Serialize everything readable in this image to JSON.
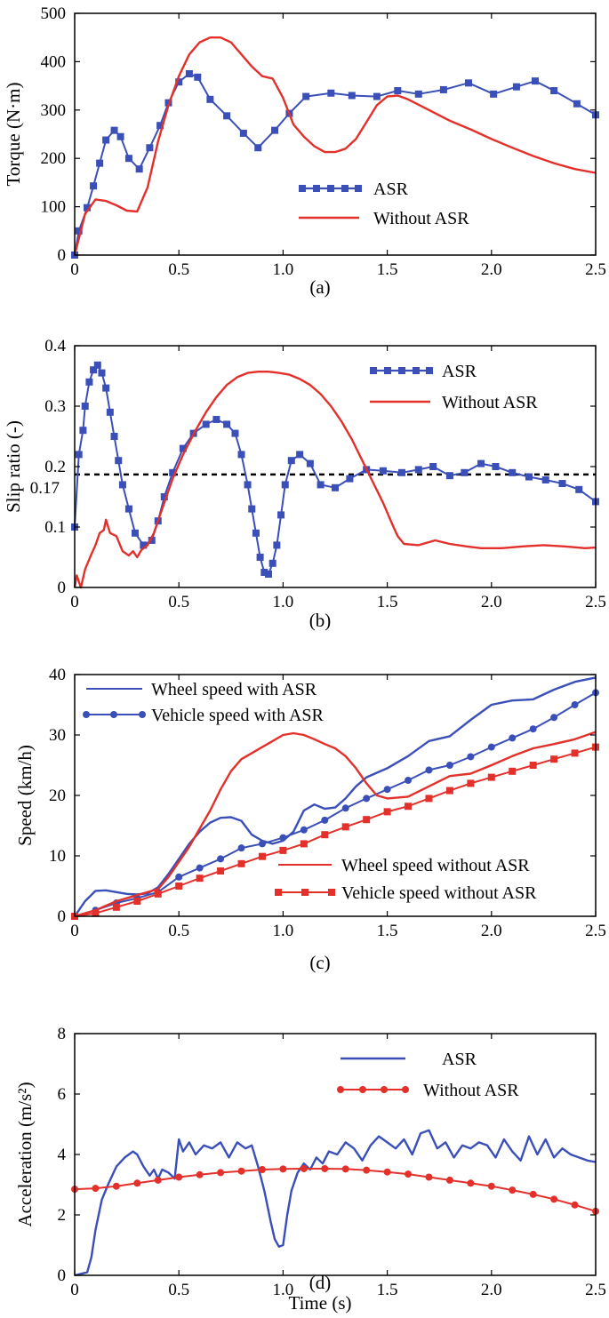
{
  "colors": {
    "blue": "#3a4fb8",
    "red": "#e3302b",
    "axis": "#000000"
  },
  "chart_data": [
    {
      "type": "line",
      "caption": "(a)",
      "xlabel": "",
      "ylabel": "Torque (N·m)",
      "xlim": [
        0,
        2.5
      ],
      "ylim": [
        0,
        500
      ],
      "xticks": [
        0,
        0.5,
        1.0,
        1.5,
        2.0,
        2.5
      ],
      "xticklabels": [
        "0",
        "0.5",
        "1.0",
        "1.5",
        "2.0",
        "2.5"
      ],
      "yticks": [
        0,
        100,
        200,
        300,
        400,
        500
      ],
      "yticklabels": [
        "0",
        "100",
        "200",
        "300",
        "400",
        "500"
      ],
      "legend_position": "center-right",
      "series": [
        {
          "name": "ASR",
          "color": "blue",
          "marker": "square",
          "x": [
            0,
            0.02,
            0.06,
            0.09,
            0.12,
            0.15,
            0.19,
            0.22,
            0.26,
            0.31,
            0.36,
            0.41,
            0.45,
            0.5,
            0.55,
            0.59,
            0.65,
            0.73,
            0.81,
            0.88,
            0.96,
            1.03,
            1.11,
            1.23,
            1.33,
            1.45,
            1.55,
            1.65,
            1.77,
            1.89,
            2.01,
            2.12,
            2.21,
            2.3,
            2.41,
            2.5
          ],
          "y": [
            0,
            50,
            98,
            143,
            190,
            238,
            258,
            245,
            200,
            178,
            222,
            268,
            315,
            358,
            375,
            368,
            322,
            288,
            252,
            222,
            258,
            293,
            328,
            335,
            330,
            328,
            340,
            333,
            342,
            356,
            333,
            348,
            360,
            340,
            313,
            290
          ]
        },
        {
          "name": "Without ASR",
          "color": "red",
          "marker": "none",
          "x": [
            0,
            0.05,
            0.1,
            0.15,
            0.2,
            0.25,
            0.3,
            0.35,
            0.4,
            0.45,
            0.5,
            0.55,
            0.6,
            0.65,
            0.7,
            0.75,
            0.8,
            0.85,
            0.9,
            0.95,
            1.0,
            1.05,
            1.1,
            1.15,
            1.2,
            1.25,
            1.3,
            1.35,
            1.4,
            1.45,
            1.5,
            1.55,
            1.6,
            1.7,
            1.8,
            1.9,
            2.0,
            2.1,
            2.2,
            2.3,
            2.4,
            2.5
          ],
          "y": [
            0,
            85,
            115,
            112,
            103,
            92,
            90,
            140,
            235,
            310,
            370,
            415,
            440,
            450,
            450,
            440,
            415,
            390,
            370,
            365,
            325,
            270,
            245,
            225,
            213,
            213,
            220,
            240,
            275,
            310,
            328,
            330,
            322,
            300,
            278,
            260,
            240,
            222,
            205,
            190,
            178,
            170
          ]
        }
      ]
    },
    {
      "type": "line",
      "caption": "(b)",
      "xlabel": "",
      "ylabel": "Slip ratio (-)",
      "xlim": [
        0,
        2.5
      ],
      "ylim": [
        0,
        0.4
      ],
      "xticks": [
        0,
        0.5,
        1.0,
        1.5,
        2.0,
        2.5
      ],
      "xticklabels": [
        "0",
        "0.5",
        "1.0",
        "1.5",
        "2.0",
        "2.5"
      ],
      "yticks": [
        0,
        0.1,
        0.2,
        0.3,
        0.4
      ],
      "yticklabels": [
        "0",
        "0.1",
        "0.2",
        "0.3",
        "0.4"
      ],
      "extra_ytick_label": "0.17",
      "reference_line": {
        "y": 0.187,
        "style": "dashed"
      },
      "legend_position": "top-right",
      "series": [
        {
          "name": "ASR",
          "color": "blue",
          "marker": "square",
          "x": [
            0,
            0.02,
            0.04,
            0.05,
            0.07,
            0.09,
            0.11,
            0.13,
            0.15,
            0.17,
            0.19,
            0.21,
            0.23,
            0.26,
            0.29,
            0.33,
            0.37,
            0.4,
            0.43,
            0.47,
            0.52,
            0.57,
            0.63,
            0.68,
            0.73,
            0.77,
            0.8,
            0.83,
            0.85,
            0.87,
            0.89,
            0.91,
            0.93,
            0.95,
            0.97,
            0.99,
            1.01,
            1.04,
            1.08,
            1.13,
            1.18,
            1.25,
            1.32,
            1.4,
            1.48,
            1.57,
            1.65,
            1.72,
            1.8,
            1.87,
            1.95,
            2.02,
            2.1,
            2.18,
            2.26,
            2.34,
            2.42,
            2.5
          ],
          "y": [
            0.1,
            0.22,
            0.26,
            0.3,
            0.34,
            0.36,
            0.368,
            0.355,
            0.33,
            0.29,
            0.25,
            0.21,
            0.17,
            0.13,
            0.09,
            0.07,
            0.078,
            0.11,
            0.15,
            0.19,
            0.23,
            0.255,
            0.27,
            0.278,
            0.27,
            0.255,
            0.22,
            0.17,
            0.13,
            0.09,
            0.05,
            0.025,
            0.022,
            0.04,
            0.07,
            0.12,
            0.17,
            0.21,
            0.22,
            0.205,
            0.17,
            0.165,
            0.18,
            0.195,
            0.193,
            0.19,
            0.195,
            0.2,
            0.185,
            0.19,
            0.205,
            0.2,
            0.19,
            0.183,
            0.178,
            0.172,
            0.162,
            0.142
          ]
        },
        {
          "name": "Without ASR",
          "color": "red",
          "marker": "none",
          "x": [
            0,
            0.01,
            0.03,
            0.05,
            0.08,
            0.1,
            0.12,
            0.14,
            0.15,
            0.17,
            0.2,
            0.23,
            0.26,
            0.28,
            0.3,
            0.32,
            0.35,
            0.38,
            0.42,
            0.47,
            0.52,
            0.58,
            0.63,
            0.68,
            0.73,
            0.78,
            0.83,
            0.88,
            0.93,
            0.98,
            1.03,
            1.08,
            1.13,
            1.18,
            1.23,
            1.28,
            1.33,
            1.38,
            1.43,
            1.48,
            1.53,
            1.55,
            1.58,
            1.65,
            1.73,
            1.8,
            1.88,
            1.95,
            2.05,
            2.15,
            2.25,
            2.35,
            2.45,
            2.5
          ],
          "y": [
            0,
            0.02,
            0,
            0.03,
            0.055,
            0.07,
            0.09,
            0.095,
            0.112,
            0.09,
            0.085,
            0.06,
            0.053,
            0.06,
            0.05,
            0.062,
            0.07,
            0.09,
            0.13,
            0.18,
            0.22,
            0.26,
            0.29,
            0.315,
            0.335,
            0.348,
            0.355,
            0.357,
            0.357,
            0.355,
            0.352,
            0.345,
            0.335,
            0.32,
            0.3,
            0.275,
            0.245,
            0.21,
            0.175,
            0.14,
            0.1,
            0.085,
            0.072,
            0.07,
            0.078,
            0.072,
            0.068,
            0.065,
            0.065,
            0.068,
            0.07,
            0.068,
            0.065,
            0.066
          ]
        }
      ]
    },
    {
      "type": "line",
      "caption": "(c)",
      "xlabel": "",
      "ylabel": "Speed (km/h)",
      "xlim": [
        0,
        2.5
      ],
      "ylim": [
        0,
        40
      ],
      "xticks": [
        0,
        0.5,
        1.0,
        1.5,
        2.0,
        2.5
      ],
      "xticklabels": [
        "0",
        "0.5",
        "1.0",
        "1.5",
        "2.0",
        "2.5"
      ],
      "yticks": [
        0,
        10,
        20,
        30,
        40
      ],
      "yticklabels": [
        "0",
        "10",
        "20",
        "30",
        "40"
      ],
      "legend_position": "top-left and bottom-right",
      "series": [
        {
          "name": "Wheel speed with ASR",
          "color": "blue",
          "marker": "none",
          "x": [
            0,
            0.05,
            0.1,
            0.15,
            0.2,
            0.25,
            0.3,
            0.35,
            0.4,
            0.45,
            0.5,
            0.55,
            0.6,
            0.65,
            0.7,
            0.75,
            0.8,
            0.85,
            0.9,
            0.95,
            1.0,
            1.05,
            1.1,
            1.15,
            1.2,
            1.25,
            1.3,
            1.35,
            1.4,
            1.5,
            1.6,
            1.7,
            1.8,
            1.9,
            2.0,
            2.1,
            2.2,
            2.3,
            2.4,
            2.5
          ],
          "y": [
            0,
            2.5,
            4.2,
            4.3,
            4.0,
            3.7,
            3.6,
            3.8,
            4.8,
            7.0,
            9.5,
            12.0,
            14.0,
            15.5,
            16.3,
            16.4,
            15.8,
            13.5,
            12.5,
            12.0,
            12.5,
            14.0,
            17.5,
            18.5,
            17.8,
            18.0,
            19.5,
            21.5,
            23.0,
            24.5,
            26.5,
            29.0,
            29.8,
            32.5,
            35.0,
            35.7,
            35.9,
            37.5,
            38.8,
            39.5
          ]
        },
        {
          "name": "Vehicle speed with ASR",
          "color": "blue",
          "marker": "circle",
          "x": [
            0,
            0.1,
            0.2,
            0.3,
            0.4,
            0.5,
            0.6,
            0.7,
            0.8,
            0.9,
            1.0,
            1.1,
            1.2,
            1.3,
            1.4,
            1.5,
            1.6,
            1.7,
            1.8,
            1.9,
            2.0,
            2.1,
            2.2,
            2.3,
            2.4,
            2.5
          ],
          "y": [
            0,
            1.0,
            2.2,
            3.0,
            4.0,
            6.5,
            8.0,
            9.5,
            11.3,
            12.0,
            13.0,
            14.3,
            15.9,
            17.9,
            19.5,
            21.0,
            22.5,
            24.2,
            25.0,
            26.4,
            28.0,
            29.5,
            31.0,
            32.9,
            35.0,
            37.0
          ]
        },
        {
          "name": "Wheel speed without ASR",
          "color": "red",
          "marker": "none",
          "x": [
            0,
            0.1,
            0.2,
            0.3,
            0.4,
            0.45,
            0.5,
            0.55,
            0.6,
            0.65,
            0.7,
            0.75,
            0.8,
            0.85,
            0.9,
            0.95,
            1.0,
            1.05,
            1.1,
            1.15,
            1.2,
            1.25,
            1.3,
            1.35,
            1.4,
            1.45,
            1.5,
            1.6,
            1.7,
            1.8,
            1.9,
            2.0,
            2.1,
            2.2,
            2.3,
            2.4,
            2.5
          ],
          "y": [
            0,
            1.0,
            2.5,
            3.5,
            4.5,
            6.5,
            9.0,
            11.5,
            14.5,
            17.5,
            21.0,
            24.0,
            26.0,
            27.0,
            28.0,
            29.0,
            30.0,
            30.3,
            30.0,
            29.3,
            28.5,
            27.8,
            26.5,
            24.5,
            22.0,
            20.0,
            19.5,
            19.8,
            21.5,
            23.2,
            23.6,
            25.0,
            26.5,
            27.8,
            28.5,
            29.3,
            30.5
          ]
        },
        {
          "name": "Vehicle speed without ASR",
          "color": "red",
          "marker": "square",
          "x": [
            0,
            0.1,
            0.2,
            0.3,
            0.4,
            0.5,
            0.6,
            0.7,
            0.8,
            0.9,
            1.0,
            1.1,
            1.2,
            1.3,
            1.4,
            1.5,
            1.6,
            1.7,
            1.8,
            1.9,
            2.0,
            2.1,
            2.2,
            2.3,
            2.4,
            2.5
          ],
          "y": [
            0,
            0.5,
            1.5,
            2.5,
            3.7,
            5.0,
            6.3,
            7.5,
            8.7,
            9.9,
            10.9,
            12.0,
            13.5,
            14.8,
            16.0,
            17.3,
            18.2,
            19.5,
            20.8,
            22.0,
            23.0,
            24.0,
            25.0,
            26.0,
            27.0,
            28.0
          ]
        }
      ]
    },
    {
      "type": "line",
      "caption": "(d)",
      "xlabel": "Time (s)",
      "ylabel": "Acceleration (m/s²)",
      "xlim": [
        0,
        2.5
      ],
      "ylim": [
        0,
        8
      ],
      "xticks": [
        0,
        0.5,
        1.0,
        1.5,
        2.0,
        2.5
      ],
      "xticklabels": [
        "0",
        "0.5",
        "1.0",
        "1.5",
        "2.0",
        "2.5"
      ],
      "yticks": [
        0,
        2,
        4,
        6,
        8
      ],
      "yticklabels": [
        "0",
        "2",
        "4",
        "6",
        "8"
      ],
      "legend_position": "top-right",
      "series": [
        {
          "name": "ASR",
          "color": "blue",
          "marker": "none",
          "x": [
            0,
            0.03,
            0.06,
            0.08,
            0.1,
            0.13,
            0.16,
            0.2,
            0.24,
            0.28,
            0.3,
            0.33,
            0.36,
            0.38,
            0.4,
            0.42,
            0.45,
            0.48,
            0.5,
            0.52,
            0.55,
            0.58,
            0.62,
            0.66,
            0.7,
            0.74,
            0.78,
            0.82,
            0.85,
            0.88,
            0.91,
            0.94,
            0.96,
            0.98,
            1.0,
            1.02,
            1.04,
            1.07,
            1.1,
            1.13,
            1.16,
            1.19,
            1.22,
            1.26,
            1.3,
            1.34,
            1.38,
            1.42,
            1.46,
            1.5,
            1.54,
            1.58,
            1.62,
            1.66,
            1.7,
            1.74,
            1.78,
            1.82,
            1.86,
            1.9,
            1.94,
            1.98,
            2.02,
            2.06,
            2.1,
            2.14,
            2.18,
            2.22,
            2.26,
            2.3,
            2.34,
            2.38,
            2.42,
            2.46,
            2.5
          ],
          "y": [
            0,
            0.05,
            0.1,
            0.6,
            1.5,
            2.5,
            3.0,
            3.6,
            3.9,
            4.1,
            4.0,
            3.6,
            3.3,
            3.5,
            3.2,
            3.5,
            3.4,
            3.2,
            4.5,
            4.1,
            4.4,
            4.0,
            4.3,
            4.2,
            4.4,
            3.9,
            4.4,
            4.2,
            4.3,
            3.6,
            2.8,
            1.8,
            1.2,
            0.95,
            1.0,
            2.0,
            2.8,
            3.4,
            3.7,
            3.5,
            3.9,
            3.7,
            4.1,
            4.0,
            4.4,
            4.2,
            3.8,
            4.3,
            4.6,
            4.4,
            4.2,
            4.5,
            4.0,
            4.7,
            4.8,
            4.2,
            4.4,
            3.9,
            4.3,
            4.2,
            4.4,
            4.3,
            3.9,
            4.5,
            4.1,
            3.8,
            4.6,
            4.0,
            4.5,
            3.9,
            4.2,
            4.0,
            3.9,
            3.8,
            3.75
          ]
        },
        {
          "name": "Without ASR",
          "color": "red",
          "marker": "circle",
          "x": [
            0,
            0.1,
            0.2,
            0.3,
            0.4,
            0.5,
            0.6,
            0.7,
            0.8,
            0.9,
            1.0,
            1.1,
            1.2,
            1.3,
            1.4,
            1.5,
            1.6,
            1.7,
            1.8,
            1.9,
            2.0,
            2.1,
            2.2,
            2.3,
            2.4,
            2.5
          ],
          "y": [
            2.85,
            2.88,
            2.95,
            3.05,
            3.15,
            3.25,
            3.33,
            3.4,
            3.45,
            3.5,
            3.52,
            3.53,
            3.53,
            3.52,
            3.48,
            3.42,
            3.35,
            3.25,
            3.15,
            3.05,
            2.95,
            2.82,
            2.68,
            2.52,
            2.33,
            2.12
          ]
        }
      ]
    }
  ]
}
